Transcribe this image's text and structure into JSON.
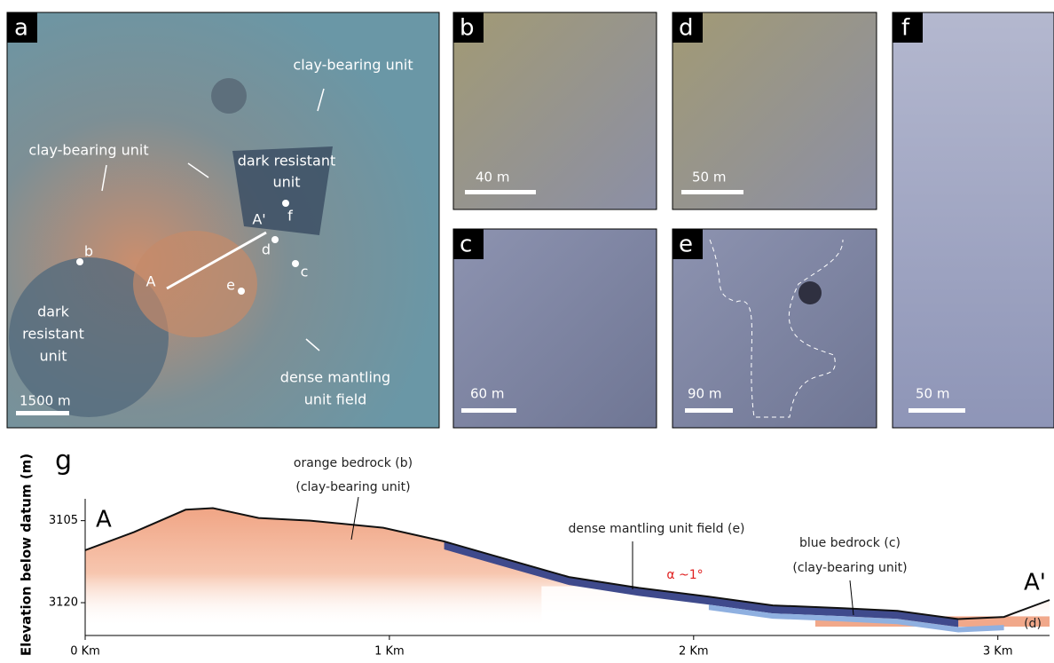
{
  "panels": [
    {
      "label": "a",
      "scale": "1500 m"
    },
    {
      "label": "b",
      "scale": "40 m"
    },
    {
      "label": "c",
      "scale": "60 m"
    },
    {
      "label": "d",
      "scale": "50 m"
    },
    {
      "label": "e",
      "scale": "90 m"
    },
    {
      "label": "f",
      "scale": "50 m"
    }
  ],
  "panel_a": {
    "annotations": [
      "clay-bearing unit",
      "clay-bearing unit",
      "dark resistant",
      "unit",
      "dark",
      "resistant",
      "unit",
      "dense mantling",
      "unit field"
    ],
    "points": [
      "b",
      "d",
      "c",
      "e",
      "f",
      "A",
      "A'"
    ]
  },
  "chart_data": {
    "type": "line",
    "label": "g",
    "y_label": "Elevation below datum (m)",
    "x": [
      0,
      0.16,
      0.33,
      0.42,
      0.57,
      0.74,
      0.98,
      1.18,
      1.35,
      1.59,
      1.82,
      2.05,
      2.26,
      2.49,
      2.67,
      2.87,
      3.02,
      3.17
    ],
    "values": [
      3110.4,
      3107.1,
      3103,
      3102.7,
      3104.5,
      3105,
      3106.3,
      3108.8,
      3111.5,
      3115.3,
      3117.3,
      3118.9,
      3120.5,
      3121,
      3121.5,
      3123,
      3122.6,
      3119.5
    ],
    "color": "#111111",
    "xlim": [
      0,
      3.17
    ],
    "xticks": [
      {
        "value": 0,
        "label": "0 Km"
      },
      {
        "value": 1,
        "label": "1 Km"
      },
      {
        "value": 2,
        "label": "2 Km"
      },
      {
        "value": 3,
        "label": "3 Km"
      }
    ],
    "ylim": [
      3101,
      3126
    ],
    "y_inverted": true,
    "yticks": [
      3105,
      3120
    ],
    "endpoints": [
      "A",
      "A'"
    ],
    "annotations": [
      "orange bedrock (b)",
      "(clay-bearing unit)",
      "dense mantling unit field (e)",
      "blue bedrock (c)",
      "(clay-bearing unit)",
      "α ~1°",
      "(d)"
    ]
  }
}
